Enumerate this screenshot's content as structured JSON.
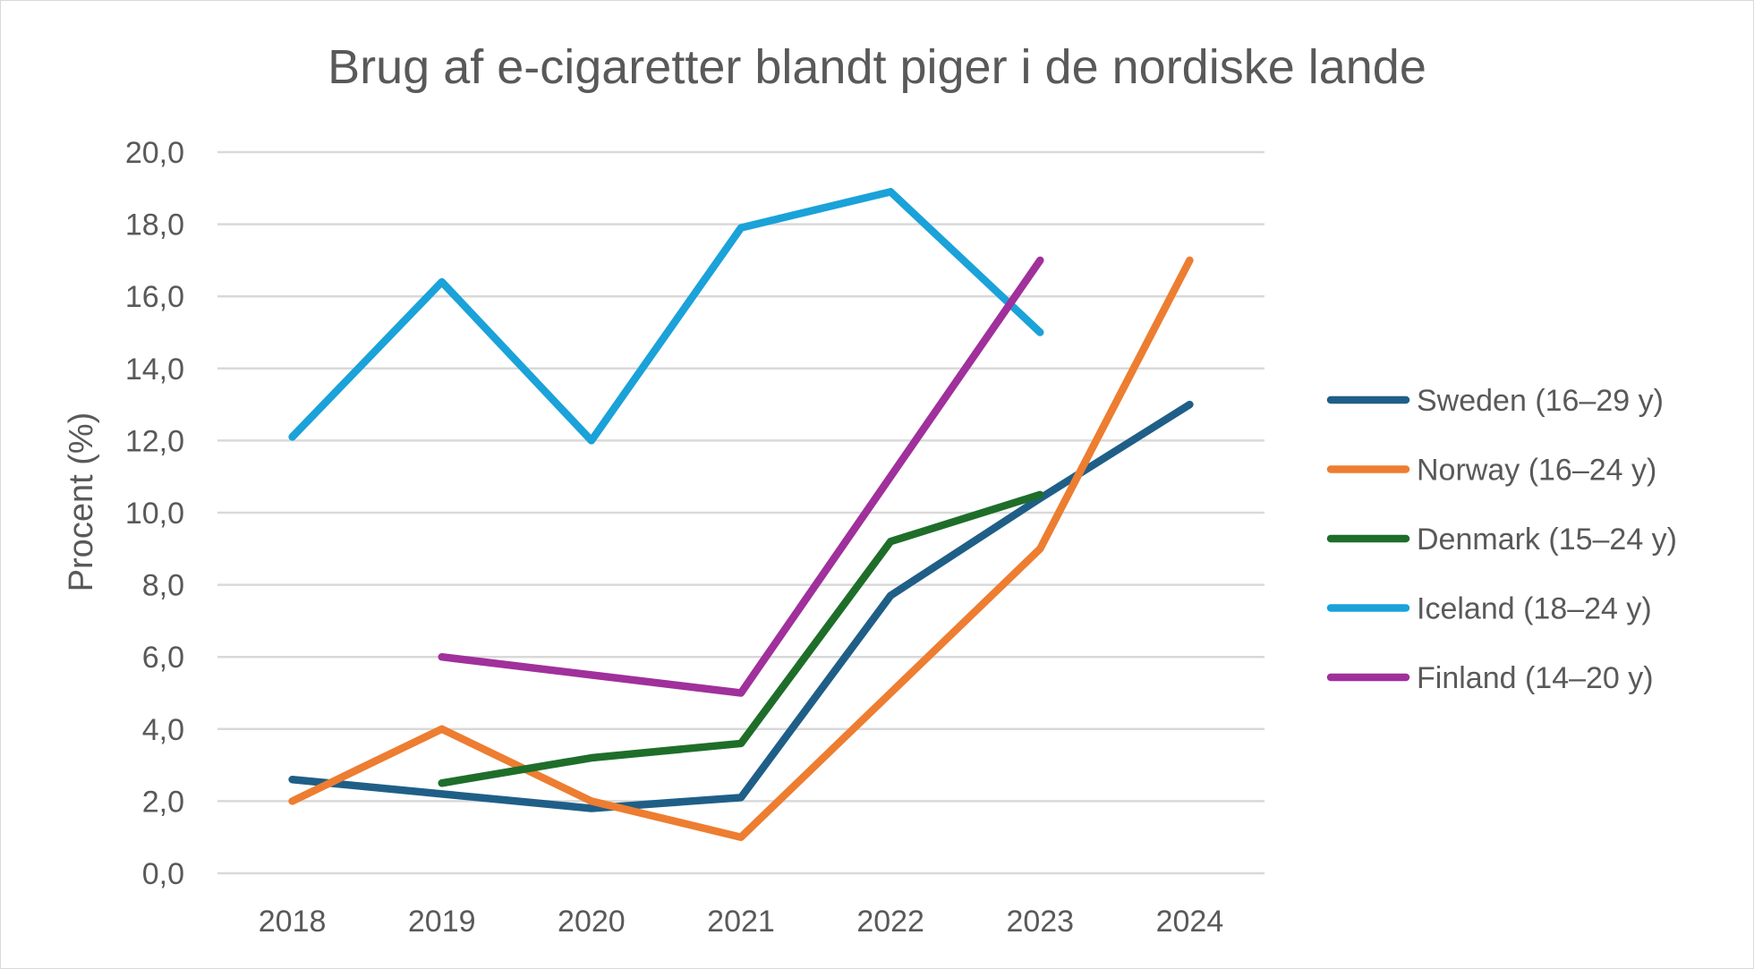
{
  "chart_data": {
    "type": "line",
    "title": "Brug af e-cigaretter blandt piger i de nordiske lande",
    "xlabel": "",
    "ylabel": "Procent (%)",
    "categories": [
      "2018",
      "2019",
      "2020",
      "2021",
      "2022",
      "2023",
      "2024"
    ],
    "ylim": [
      0,
      20
    ],
    "yticks": [
      "0,0",
      "2,0",
      "4,0",
      "6,0",
      "8,0",
      "10,0",
      "12,0",
      "14,0",
      "16,0",
      "18,0",
      "20,0"
    ],
    "grid": true,
    "legend_position": "right",
    "series": [
      {
        "name": "Sweden (16–29 y)",
        "color": "#1f5f87",
        "values": [
          2.6,
          2.2,
          1.8,
          2.1,
          7.7,
          10.4,
          13.0
        ]
      },
      {
        "name": "Norway (16–24 y)",
        "color": "#ed7d31",
        "values": [
          2.0,
          4.0,
          2.0,
          1.0,
          5.0,
          9.0,
          17.0
        ]
      },
      {
        "name": "Denmark (15–24 y)",
        "color": "#1e6e2a",
        "values": [
          null,
          2.5,
          3.2,
          3.6,
          9.2,
          10.5,
          null
        ]
      },
      {
        "name": "Iceland (18–24 y)",
        "color": "#1aa2d9",
        "values": [
          12.1,
          16.4,
          12.0,
          17.9,
          18.9,
          15.0,
          null
        ]
      },
      {
        "name": "Finland (14–20 y)",
        "color": "#a0309b",
        "values": [
          null,
          6.0,
          5.5,
          5.0,
          11.0,
          17.0,
          null
        ]
      }
    ]
  }
}
